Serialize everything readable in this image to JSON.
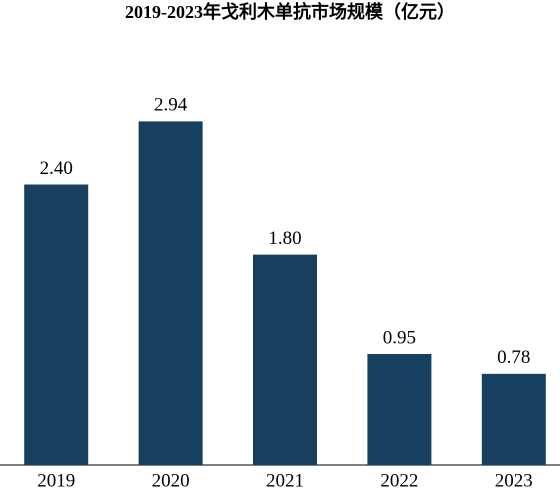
{
  "chart_data": {
    "type": "bar",
    "title": "2019-2023年戈利木单抗市场规模（亿元）",
    "categories": [
      "2019",
      "2020",
      "2021",
      "2022",
      "2023"
    ],
    "values": [
      2.4,
      2.94,
      1.8,
      0.95,
      0.78
    ],
    "value_labels": [
      "2.40",
      "2.94",
      "1.80",
      "0.95",
      "0.78"
    ],
    "color": "#173f5f",
    "ylim": [
      0,
      3.2
    ]
  }
}
